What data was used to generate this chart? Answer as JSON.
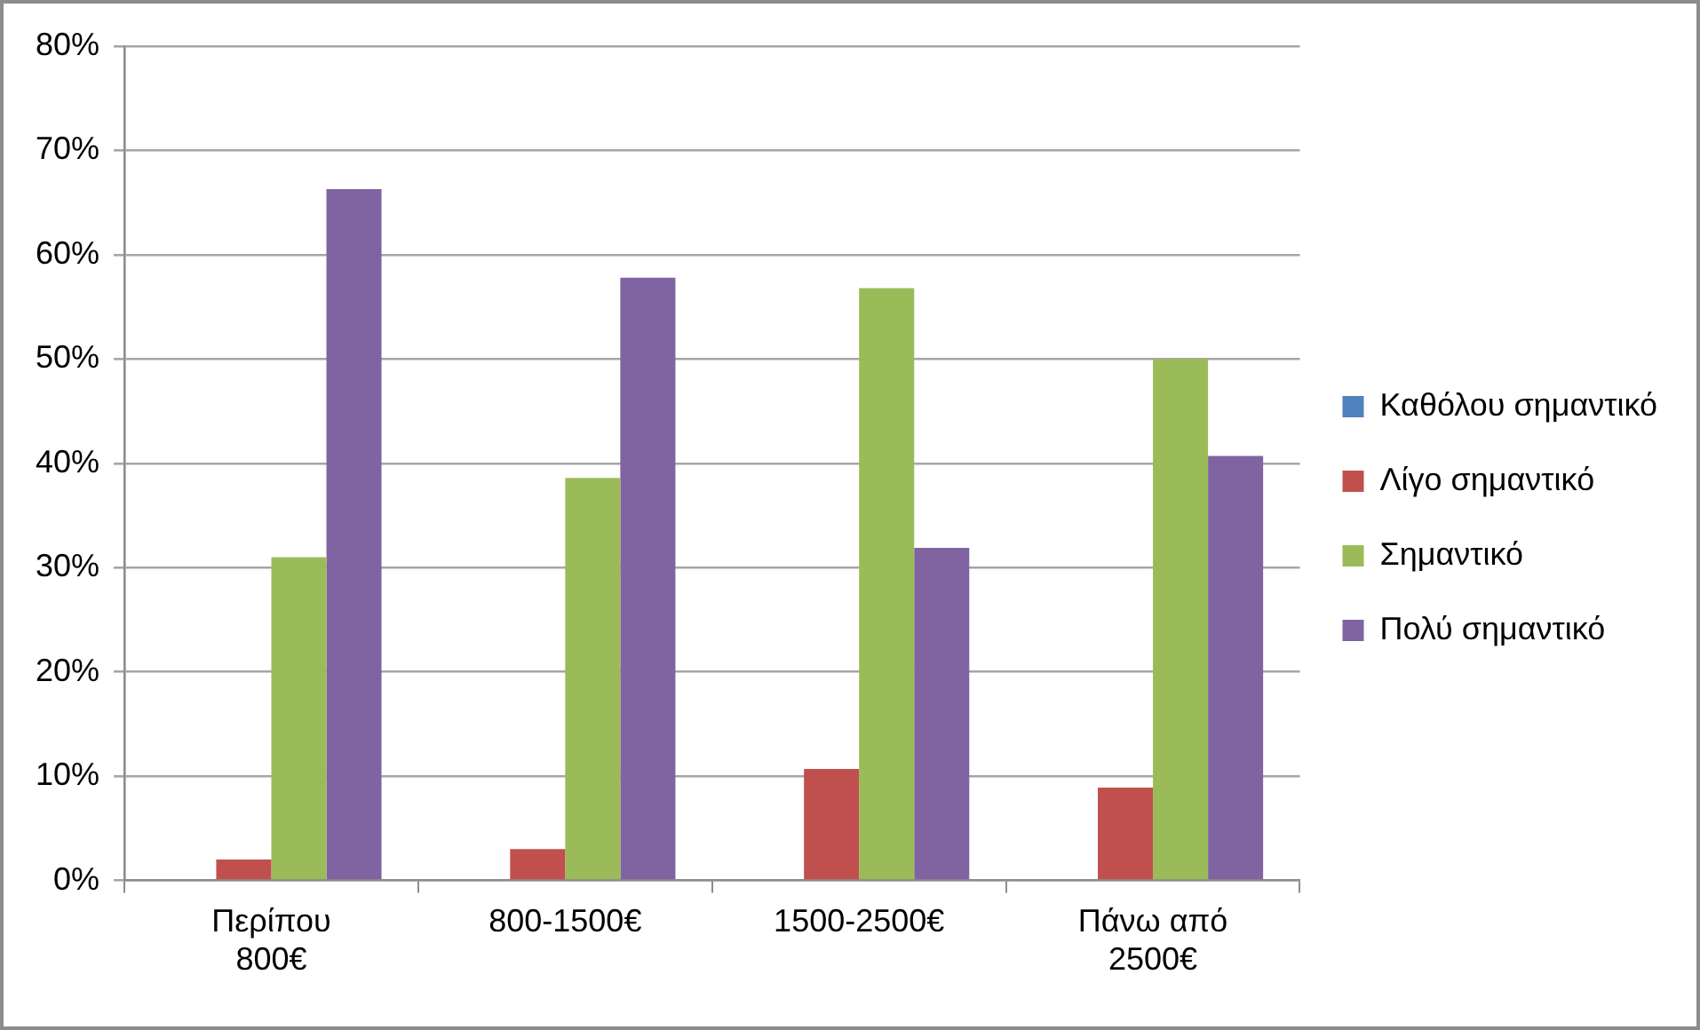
{
  "chart_data": {
    "type": "bar",
    "categories": [
      "Περίπου 800€",
      "800-1500€",
      "1500-2500€",
      "Πάνω από 2500€"
    ],
    "series": [
      {
        "name": "Καθόλου σημαντικό",
        "color": "#4f81bd",
        "values": [
          0,
          0,
          0,
          0
        ]
      },
      {
        "name": "Λίγο σημαντικό",
        "color": "#c0504d",
        "values": [
          2,
          3,
          10.7,
          8.9
        ]
      },
      {
        "name": "Σημαντικό",
        "color": "#9bbb59",
        "values": [
          31,
          38.6,
          56.8,
          50
        ]
      },
      {
        "name": "Πολύ σημαντικό",
        "color": "#8064a2",
        "values": [
          66.3,
          57.8,
          31.9,
          40.7
        ]
      }
    ],
    "ylim": [
      0,
      80
    ],
    "yticks": [
      {
        "value": 0,
        "label": "0%"
      },
      {
        "value": 10,
        "label": "10%"
      },
      {
        "value": 20,
        "label": "20%"
      },
      {
        "value": 30,
        "label": "30%"
      },
      {
        "value": 40,
        "label": "40%"
      },
      {
        "value": 50,
        "label": "50%"
      },
      {
        "value": 60,
        "label": "60%"
      },
      {
        "value": 70,
        "label": "70%"
      },
      {
        "value": 80,
        "label": "80%"
      }
    ],
    "grid": "y",
    "legend": "right"
  }
}
